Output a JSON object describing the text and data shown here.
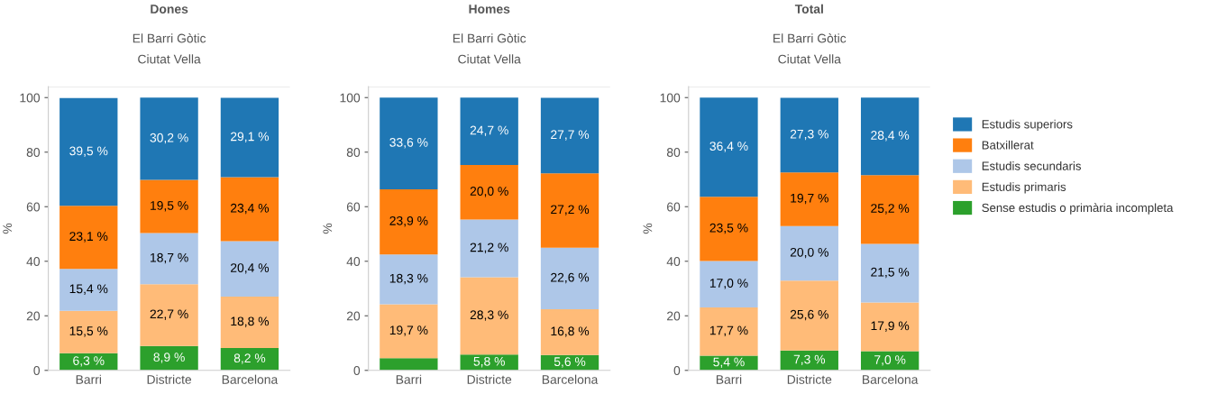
{
  "chart_data": [
    {
      "type": "bar",
      "stacked": true,
      "title": "Dones",
      "subtitle": "El Barri Gòtic\nCiutat Vella",
      "ylabel": "%",
      "categories": [
        "Barri",
        "Districte",
        "Barcelona"
      ],
      "ylim": [
        0,
        104
      ],
      "yticks": [
        0,
        20,
        40,
        60,
        80,
        100
      ],
      "grid": false,
      "legend": false,
      "series": [
        {
          "color": "#2ca02c",
          "values": [
            6.3,
            8.9,
            8.2
          ],
          "value_labels": [
            "6,3 %",
            "8,9 %",
            "8,2 %"
          ]
        },
        {
          "color": "#ffbb78",
          "values": [
            15.5,
            22.7,
            18.8
          ],
          "value_labels": [
            "15,5 %",
            "22,7 %",
            "18,8 %"
          ]
        },
        {
          "color": "#aec7e8",
          "values": [
            15.4,
            18.7,
            20.4
          ],
          "value_labels": [
            "15,4 %",
            "18,7 %",
            "20,4 %"
          ]
        },
        {
          "color": "#ff7f0e",
          "values": [
            23.1,
            19.5,
            23.4
          ],
          "value_labels": [
            "23,1 %",
            "19,5 %",
            "23,4 %"
          ]
        },
        {
          "color": "#1f77b4",
          "values": [
            39.5,
            30.2,
            29.1
          ],
          "value_labels": [
            "39,5 %",
            "30,2 %",
            "29,1 %"
          ]
        }
      ]
    },
    {
      "type": "bar",
      "stacked": true,
      "title": "Homes",
      "subtitle": "El Barri Gòtic\nCiutat Vella",
      "ylabel": "%",
      "categories": [
        "Barri",
        "Districte",
        "Barcelona"
      ],
      "ylim": [
        0,
        104
      ],
      "yticks": [
        0,
        20,
        40,
        60,
        80,
        100
      ],
      "grid": false,
      "legend": false,
      "series": [
        {
          "color": "#2ca02c",
          "values": [
            4.5,
            5.8,
            5.6
          ],
          "value_labels": [
            null,
            "5,8 %",
            "5,6 %"
          ]
        },
        {
          "color": "#ffbb78",
          "values": [
            19.7,
            28.3,
            16.8
          ],
          "value_labels": [
            "19,7 %",
            "28,3 %",
            "16,8 %"
          ]
        },
        {
          "color": "#aec7e8",
          "values": [
            18.3,
            21.2,
            22.6
          ],
          "value_labels": [
            "18,3 %",
            "21,2 %",
            "22,6 %"
          ]
        },
        {
          "color": "#ff7f0e",
          "values": [
            23.9,
            20.0,
            27.2
          ],
          "value_labels": [
            "23,9 %",
            "20,0 %",
            "27,2 %"
          ]
        },
        {
          "color": "#1f77b4",
          "values": [
            33.6,
            24.7,
            27.7
          ],
          "value_labels": [
            "33,6 %",
            "24,7 %",
            "27,7 %"
          ]
        }
      ]
    },
    {
      "type": "bar",
      "stacked": true,
      "title": "Total",
      "subtitle": "El Barri Gòtic\nCiutat Vella",
      "ylabel": "%",
      "categories": [
        "Barri",
        "Districte",
        "Barcelona"
      ],
      "ylim": [
        0,
        104
      ],
      "yticks": [
        0,
        20,
        40,
        60,
        80,
        100
      ],
      "grid": false,
      "legend": "right",
      "series": [
        {
          "name": "Sense estudis o primària incompleta",
          "color": "#2ca02c",
          "values": [
            5.4,
            7.3,
            7.0
          ],
          "value_labels": [
            "5,4 %",
            "7,3 %",
            "7,0 %"
          ]
        },
        {
          "name": "Estudis primaris",
          "color": "#ffbb78",
          "values": [
            17.7,
            25.6,
            17.9
          ],
          "value_labels": [
            "17,7 %",
            "25,6 %",
            "17,9 %"
          ]
        },
        {
          "name": "Estudis secundaris",
          "color": "#aec7e8",
          "values": [
            17.0,
            20.0,
            21.5
          ],
          "value_labels": [
            "17,0 %",
            "20,0 %",
            "21,5 %"
          ]
        },
        {
          "name": "Batxillerat",
          "color": "#ff7f0e",
          "values": [
            23.5,
            19.7,
            25.2
          ],
          "value_labels": [
            "23,5 %",
            "19,7 %",
            "25,2 %"
          ]
        },
        {
          "name": "Estudis superiors",
          "color": "#1f77b4",
          "values": [
            36.4,
            27.3,
            28.4
          ],
          "value_labels": [
            "36,4 %",
            "27,3 %",
            "28,4 %"
          ]
        }
      ]
    }
  ]
}
